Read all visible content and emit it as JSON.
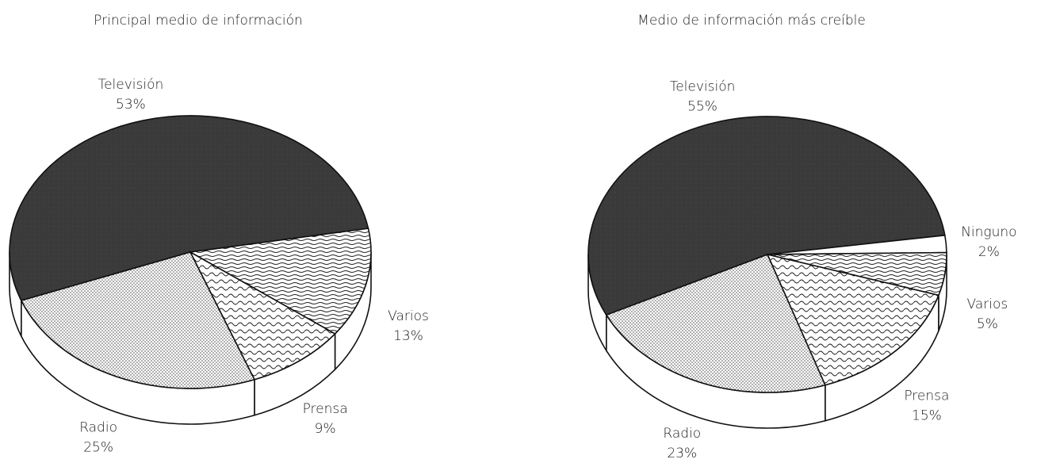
{
  "chart_data": [
    {
      "type": "pie",
      "title": "Principal medio de información",
      "categories": [
        "Televisión",
        "Varios",
        "Prensa",
        "Radio"
      ],
      "values": [
        53,
        13,
        9,
        25
      ],
      "value_labels": [
        "53%",
        "13%",
        "9%",
        "25%"
      ]
    },
    {
      "type": "pie",
      "title": "Medio de información más creíble",
      "categories": [
        "Televisión",
        "Ninguno",
        "Varios",
        "Prensa",
        "Radio"
      ],
      "values": [
        55,
        2,
        5,
        15,
        23
      ],
      "value_labels": [
        "55%",
        "2%",
        "5%",
        "15%",
        "23%"
      ]
    }
  ]
}
